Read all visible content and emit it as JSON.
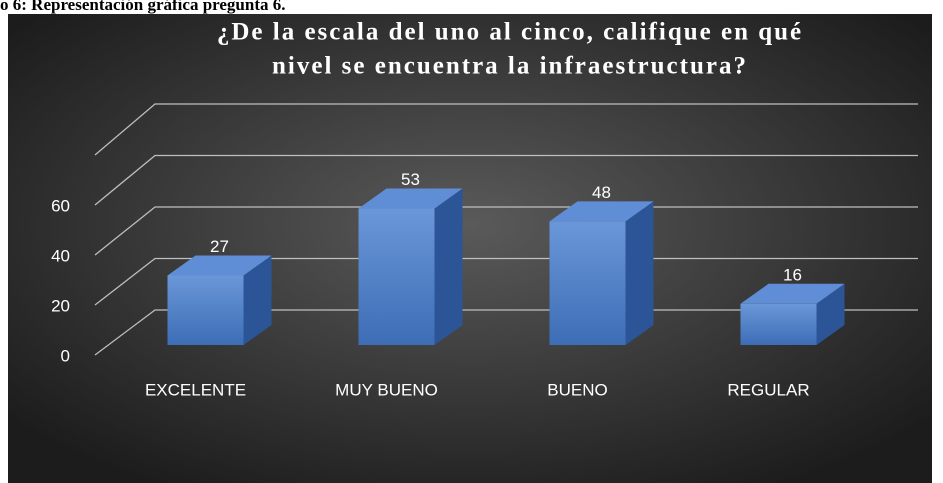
{
  "caption": "o 6: Representación gráfica pregunta 6.",
  "chart_data": {
    "type": "bar3d",
    "title": [
      "¿De la escala del uno al cinco, califique en qué",
      "nivel se encuentra la infraestructura?"
    ],
    "categories": [
      "EXCELENTE",
      "MUY BUENO",
      "BUENO",
      "REGULAR"
    ],
    "values": [
      27,
      53,
      48,
      16
    ],
    "color": "#4a7ec8",
    "ylim": [
      0,
      80
    ],
    "yticks": [
      0,
      20,
      40,
      60
    ],
    "grid": true
  }
}
